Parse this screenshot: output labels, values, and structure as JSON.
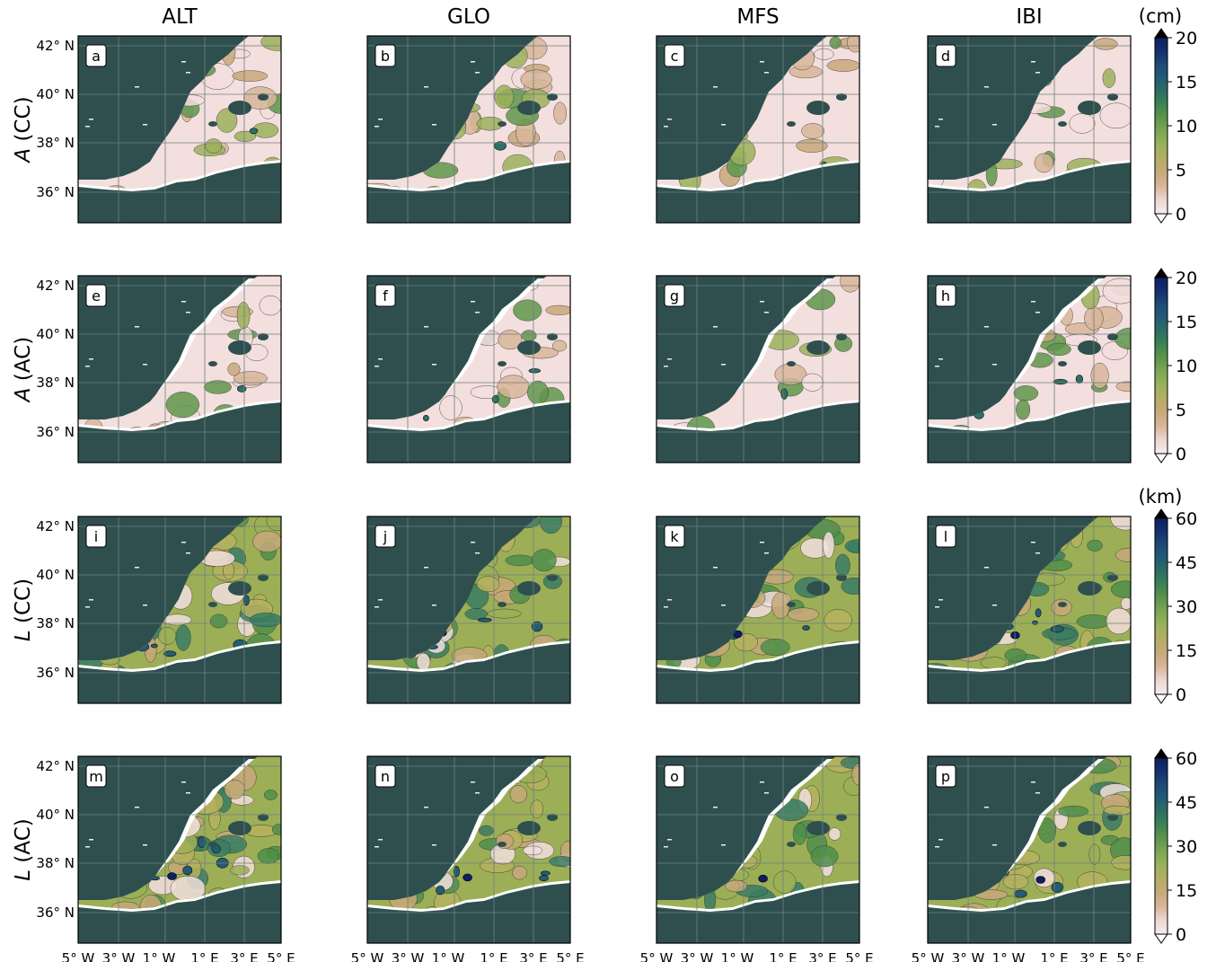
{
  "column_titles": [
    "ALT",
    "GLO",
    "MFS",
    "IBI"
  ],
  "row_titles": [
    {
      "var": "A",
      "suffix": " (CC)"
    },
    {
      "var": "A",
      "suffix": " (AC)"
    },
    {
      "var": "L",
      "suffix": " (CC)"
    },
    {
      "var": "L",
      "suffix": " (AC)"
    }
  ],
  "panel_letters": [
    [
      "a",
      "b",
      "c",
      "d"
    ],
    [
      "e",
      "f",
      "g",
      "h"
    ],
    [
      "i",
      "j",
      "k",
      "l"
    ],
    [
      "m",
      "n",
      "o",
      "p"
    ]
  ],
  "lat_ticks": [
    "42° N",
    "40° N",
    "38° N",
    "36° N"
  ],
  "lon_ticks": [
    "5° W",
    "3° W",
    "1° W",
    "1° E",
    "3° E",
    "5° E"
  ],
  "colorbars": [
    {
      "unit": "(cm)",
      "ticks": [
        "0",
        "5",
        "10",
        "15",
        "20"
      ]
    },
    {
      "unit": "",
      "ticks": [
        "0",
        "5",
        "10",
        "15",
        "20"
      ]
    },
    {
      "unit": "(km)",
      "ticks": [
        "0",
        "15",
        "30",
        "45",
        "60"
      ]
    },
    {
      "unit": "",
      "ticks": [
        "0",
        "15",
        "30",
        "45",
        "60"
      ]
    }
  ],
  "colors": {
    "land": "#2f4f4f",
    "ocean_low": "#f3dfdd",
    "amp_mid": "#d7b79a",
    "len_low": "#c7a979",
    "len_mid": "#9caf56",
    "len_high": "#4f8f4a",
    "deep": "#0d1f63",
    "grid": "#6f7f7f"
  },
  "colormap_steps": [
    "#f7ecec",
    "#eed6d3",
    "#d8b79b",
    "#c8a97c",
    "#b5ae66",
    "#9cb25b",
    "#7ea853",
    "#5f974c",
    "#3f8453",
    "#2d7064",
    "#245c72",
    "#1e4a7a",
    "#162f6d",
    "#0d1f63"
  ]
}
